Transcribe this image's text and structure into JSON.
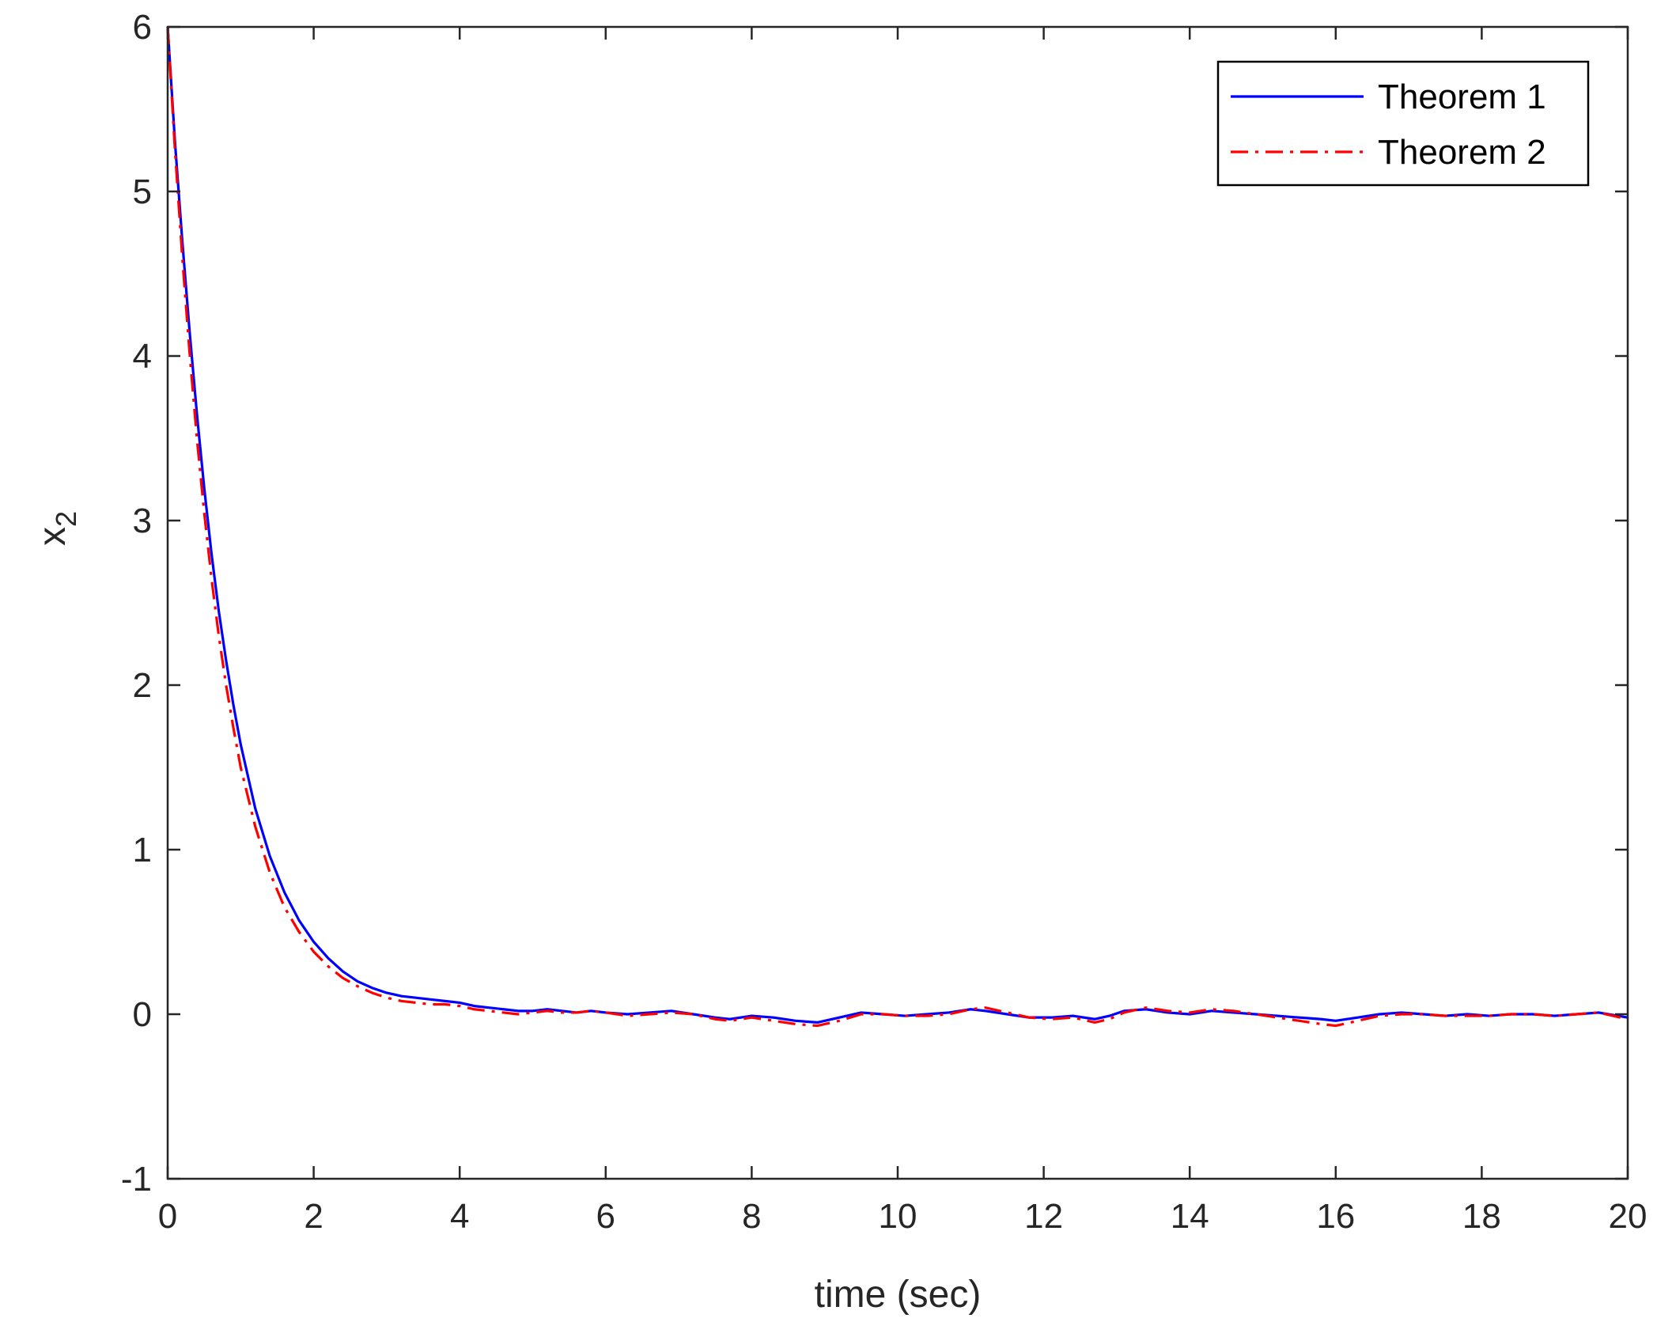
{
  "chart_data": {
    "type": "line",
    "xlabel": "time (sec)",
    "ylabel": "x",
    "ylabel_subscript": "2",
    "xlim": [
      0,
      20
    ],
    "ylim": [
      -1,
      6
    ],
    "xticks": [
      0,
      2,
      4,
      6,
      8,
      10,
      12,
      14,
      16,
      18,
      20
    ],
    "yticks": [
      -1,
      0,
      1,
      2,
      3,
      4,
      5,
      6
    ],
    "grid": false,
    "legend_position": "top-right",
    "series": [
      {
        "name": "Theorem 1",
        "color": "#0000ff",
        "dash": "solid",
        "x": [
          0,
          0.1,
          0.2,
          0.3,
          0.4,
          0.5,
          0.6,
          0.7,
          0.8,
          0.9,
          1.0,
          1.2,
          1.4,
          1.6,
          1.8,
          2.0,
          2.2,
          2.4,
          2.6,
          2.8,
          3.0,
          3.2,
          3.4,
          3.6,
          3.8,
          4.0,
          4.2,
          4.4,
          4.6,
          4.8,
          5.0,
          5.2,
          5.4,
          5.6,
          5.8,
          6.0,
          6.3,
          6.6,
          6.9,
          7.2,
          7.5,
          7.7,
          8.0,
          8.3,
          8.6,
          8.9,
          9.2,
          9.5,
          9.8,
          10.1,
          10.4,
          10.7,
          11.0,
          11.2,
          11.5,
          11.8,
          12.1,
          12.4,
          12.7,
          12.9,
          13.1,
          13.4,
          13.7,
          14.0,
          14.3,
          14.6,
          14.9,
          15.2,
          15.5,
          15.8,
          16.0,
          16.3,
          16.6,
          16.9,
          17.2,
          17.5,
          17.8,
          18.1,
          18.4,
          18.7,
          19.0,
          19.3,
          19.6,
          20.0
        ],
        "y": [
          6.0,
          5.3,
          4.7,
          4.15,
          3.65,
          3.2,
          2.8,
          2.45,
          2.15,
          1.88,
          1.64,
          1.25,
          0.96,
          0.74,
          0.57,
          0.44,
          0.34,
          0.26,
          0.2,
          0.16,
          0.13,
          0.11,
          0.1,
          0.09,
          0.08,
          0.07,
          0.05,
          0.04,
          0.03,
          0.02,
          0.02,
          0.03,
          0.02,
          0.01,
          0.02,
          0.01,
          0.0,
          0.01,
          0.02,
          0.0,
          -0.02,
          -0.03,
          -0.01,
          -0.02,
          -0.04,
          -0.05,
          -0.02,
          0.01,
          0.0,
          -0.01,
          0.0,
          0.01,
          0.03,
          0.02,
          0.0,
          -0.02,
          -0.02,
          -0.01,
          -0.03,
          -0.01,
          0.02,
          0.03,
          0.01,
          0.0,
          0.02,
          0.01,
          0.0,
          -0.01,
          -0.02,
          -0.03,
          -0.04,
          -0.02,
          0.0,
          0.01,
          0.0,
          -0.01,
          0.0,
          -0.01,
          0.0,
          0.0,
          -0.01,
          0.0,
          0.01,
          -0.02
        ]
      },
      {
        "name": "Theorem 2",
        "color": "#ff0000",
        "dash": "dash-dot",
        "x": [
          0,
          0.1,
          0.2,
          0.3,
          0.4,
          0.5,
          0.6,
          0.7,
          0.8,
          0.9,
          1.0,
          1.2,
          1.4,
          1.6,
          1.8,
          2.0,
          2.2,
          2.4,
          2.6,
          2.8,
          3.0,
          3.2,
          3.4,
          3.6,
          3.8,
          4.0,
          4.2,
          4.4,
          4.6,
          4.8,
          5.0,
          5.2,
          5.4,
          5.6,
          5.8,
          6.0,
          6.3,
          6.6,
          6.9,
          7.2,
          7.5,
          7.7,
          8.0,
          8.3,
          8.6,
          8.9,
          9.2,
          9.5,
          9.8,
          10.1,
          10.4,
          10.7,
          11.0,
          11.2,
          11.5,
          11.8,
          12.1,
          12.4,
          12.7,
          12.9,
          13.1,
          13.4,
          13.7,
          14.0,
          14.3,
          14.6,
          14.9,
          15.2,
          15.5,
          15.8,
          16.0,
          16.3,
          16.6,
          16.9,
          17.2,
          17.5,
          17.8,
          18.1,
          18.4,
          18.7,
          19.0,
          19.3,
          19.6,
          20.0
        ],
        "y": [
          6.0,
          5.25,
          4.6,
          4.02,
          3.5,
          3.05,
          2.65,
          2.3,
          2.0,
          1.74,
          1.5,
          1.14,
          0.86,
          0.65,
          0.5,
          0.38,
          0.29,
          0.22,
          0.17,
          0.13,
          0.1,
          0.08,
          0.07,
          0.06,
          0.06,
          0.05,
          0.03,
          0.02,
          0.01,
          0.0,
          0.01,
          0.02,
          0.01,
          0.01,
          0.02,
          0.01,
          -0.01,
          0.0,
          0.01,
          0.0,
          -0.03,
          -0.04,
          -0.02,
          -0.04,
          -0.06,
          -0.07,
          -0.04,
          0.0,
          0.0,
          -0.01,
          -0.01,
          0.0,
          0.03,
          0.04,
          0.01,
          -0.02,
          -0.03,
          -0.02,
          -0.05,
          -0.03,
          0.01,
          0.04,
          0.02,
          0.01,
          0.03,
          0.02,
          0.0,
          -0.02,
          -0.04,
          -0.06,
          -0.07,
          -0.04,
          -0.01,
          0.0,
          0.0,
          -0.01,
          -0.01,
          -0.01,
          0.0,
          0.0,
          -0.01,
          0.0,
          0.01,
          -0.03
        ]
      }
    ]
  }
}
